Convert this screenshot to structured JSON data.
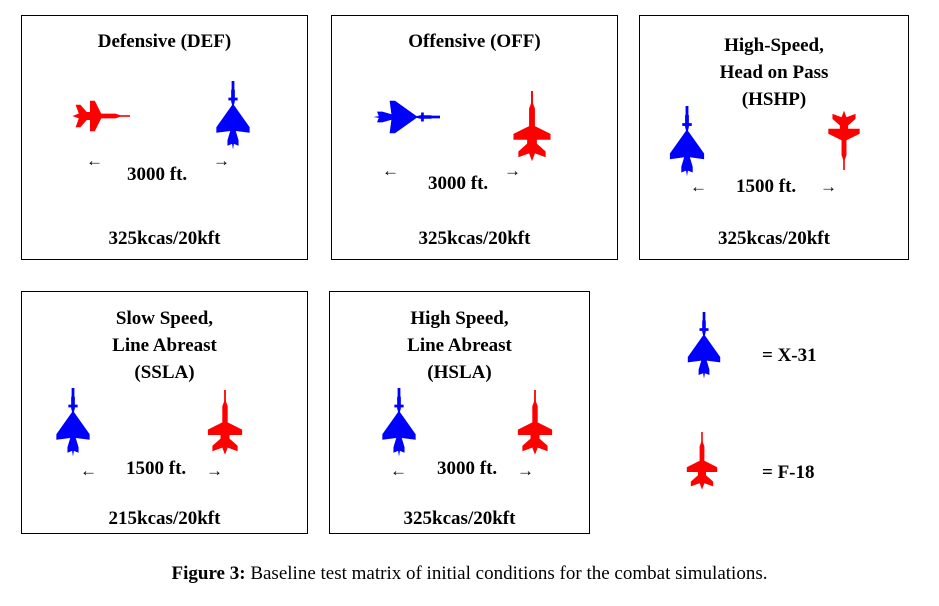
{
  "panels": [
    {
      "title": "Defensive (DEF)",
      "distance": "3000 ft.",
      "condition": "325kcas/20kft"
    },
    {
      "title": "Offensive (OFF)",
      "distance": "3000 ft.",
      "condition": "325kcas/20kft"
    },
    {
      "title": "High-Speed,\nHead on Pass\n(HSHP)",
      "distance": "1500 ft.",
      "condition": "325kcas/20kft"
    },
    {
      "title": "Slow Speed,\nLine Abreast\n(SSLA)",
      "distance": "1500 ft.",
      "condition": "215kcas/20kft"
    },
    {
      "title": "High Speed,\nLine Abreast\n(HSLA)",
      "distance": "3000 ft.",
      "condition": "325kcas/20kft"
    }
  ],
  "legend": [
    {
      "label": "= X-31",
      "color": "#0000ff"
    },
    {
      "label": "= F-18",
      "color": "#ff0000"
    }
  ],
  "caption": {
    "bold": "Figure 3:",
    "text": " Baseline test matrix of initial conditions for the combat simulations."
  },
  "colors": {
    "x31": "#0000ff",
    "f18": "#ff0000"
  },
  "icons": {
    "x31": "x31-jet-icon",
    "f18": "f18-jet-icon",
    "arrow_left": "arrow-left-icon",
    "arrow_right": "arrow-right-icon"
  }
}
